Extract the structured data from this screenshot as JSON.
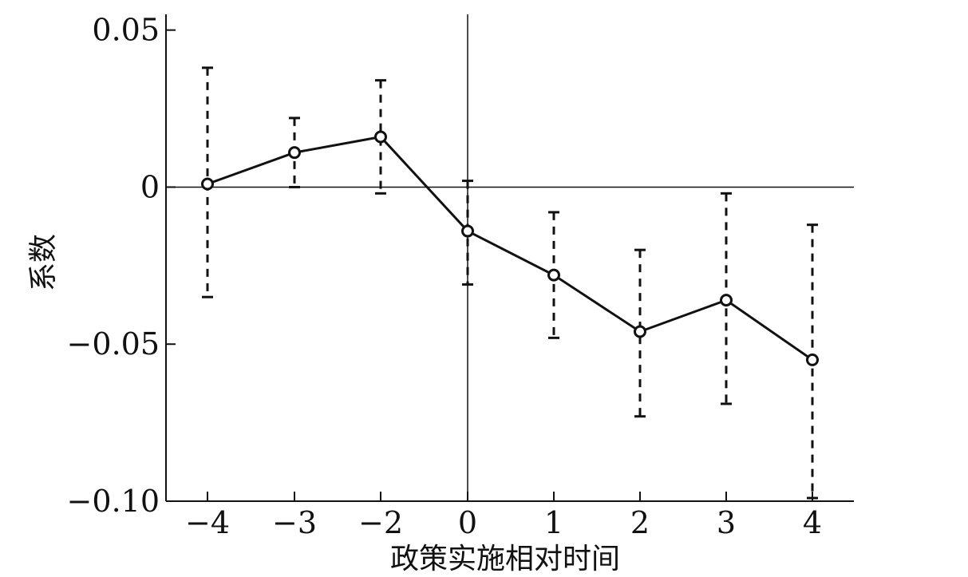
{
  "chart_data": {
    "type": "line",
    "xlabel": "政策实施相对时间",
    "ylabel": "系数",
    "categories": [
      "-4",
      "-3",
      "-2",
      "0",
      "1",
      "2",
      "3",
      "4"
    ],
    "x_tick_labels": [
      "−4",
      "−3",
      "−2",
      "0",
      "1",
      "2",
      "3",
      "4"
    ],
    "y_ticks": [
      0.05,
      0,
      -0.05,
      -0.1
    ],
    "y_tick_labels": [
      "0.05",
      "0",
      "−0.05",
      "−0.10"
    ],
    "ylim": [
      -0.1,
      0.055
    ],
    "reference_lines": {
      "horizontal_y": 0,
      "vertical_at_category": "0"
    },
    "series": [
      {
        "values": [
          0.001,
          0.011,
          0.016,
          -0.014,
          -0.028,
          -0.046,
          -0.036,
          -0.055
        ],
        "ci_upper": [
          0.038,
          0.022,
          0.034,
          0.002,
          -0.008,
          -0.02,
          -0.002,
          -0.012
        ],
        "ci_lower": [
          -0.035,
          0.0,
          -0.002,
          -0.031,
          -0.048,
          -0.073,
          -0.069,
          -0.099
        ]
      }
    ],
    "grid": false,
    "colors": {
      "line": "#111111",
      "axis": "#111111"
    }
  }
}
